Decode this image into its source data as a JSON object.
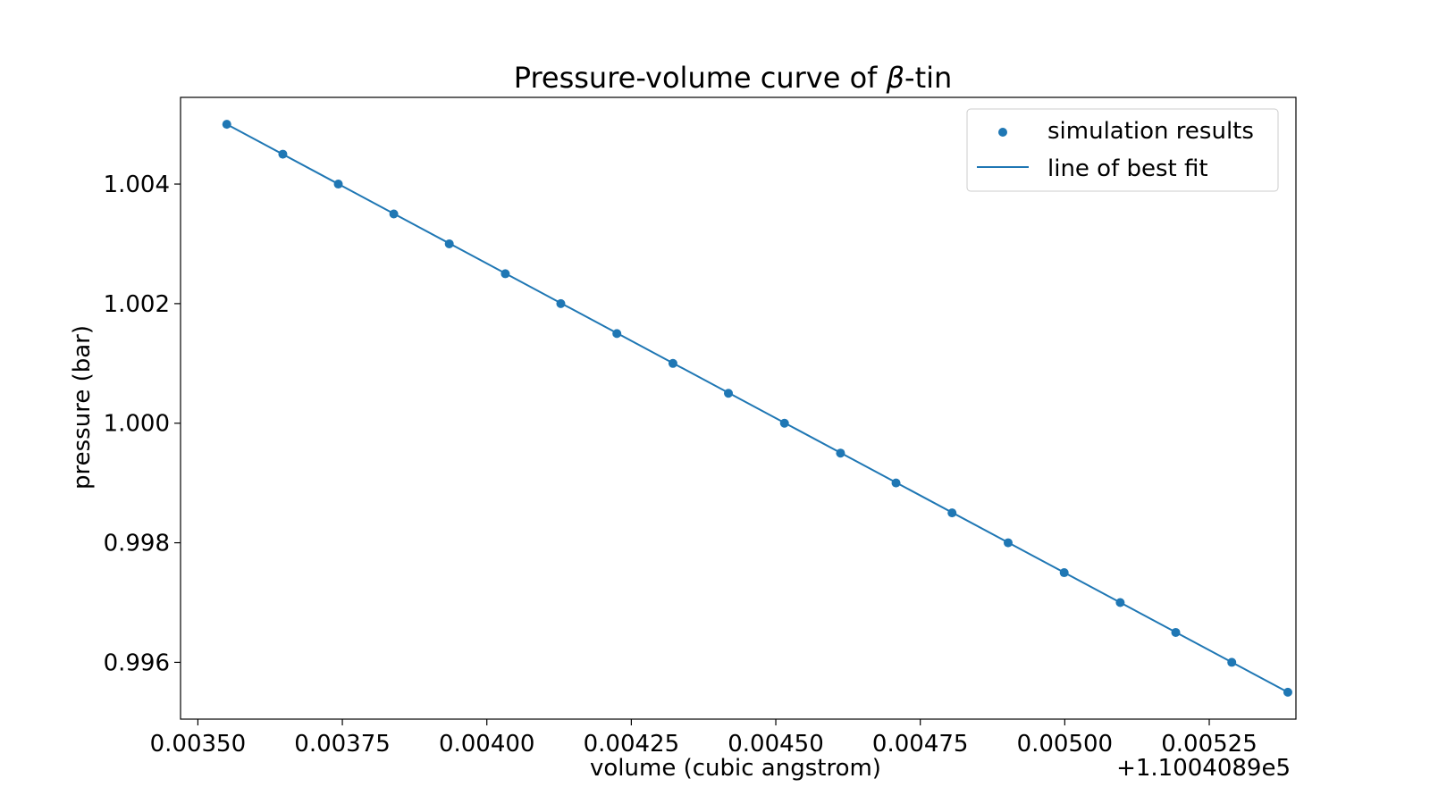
{
  "chart_data": {
    "type": "scatter",
    "title_main": "Pressure-volume curve of ",
    "title_symbol": "β",
    "title_suffix": "-tin",
    "xlabel": "volume (cubic angstrom)",
    "ylabel": "pressure (bar)",
    "x_offset_label": "+1.1004089e5",
    "xlim": [
      0.00347,
      0.0054
    ],
    "ylim": [
      0.99505,
      1.00545
    ],
    "x_ticks": [
      0.0035,
      0.00375,
      0.004,
      0.00425,
      0.0045,
      0.00475,
      0.005,
      0.00525
    ],
    "x_tick_labels": [
      "0.00350",
      "0.00375",
      "0.00400",
      "0.00425",
      "0.00450",
      "0.00475",
      "0.00500",
      "0.00525"
    ],
    "y_ticks": [
      0.996,
      0.998,
      1.0,
      1.002,
      1.004
    ],
    "y_tick_labels": [
      "0.996",
      "0.998",
      "1.000",
      "1.002",
      "1.004"
    ],
    "grid": false,
    "legend_position": "top-right",
    "color": "#1f77b4",
    "series": [
      {
        "name": "simulation results",
        "kind": "scatter",
        "x": [
          0.00355,
          0.003647,
          0.003743,
          0.003839,
          0.003935,
          0.004032,
          0.004128,
          0.004225,
          0.004322,
          0.004418,
          0.004515,
          0.004612,
          0.004708,
          0.004805,
          0.004902,
          0.004999,
          0.005096,
          0.005192,
          0.005289,
          0.005386
        ],
        "y": [
          1.005,
          1.0045,
          1.004,
          1.0035,
          1.003,
          1.0025,
          1.002,
          1.0015,
          1.001,
          1.0005,
          1.0,
          0.9995,
          0.999,
          0.9985,
          0.998,
          0.9975,
          0.997,
          0.9965,
          0.996,
          0.9955
        ]
      },
      {
        "name": "line of best fit",
        "kind": "line",
        "x": [
          0.00355,
          0.005386
        ],
        "y": [
          1.005,
          0.9955
        ]
      }
    ]
  }
}
